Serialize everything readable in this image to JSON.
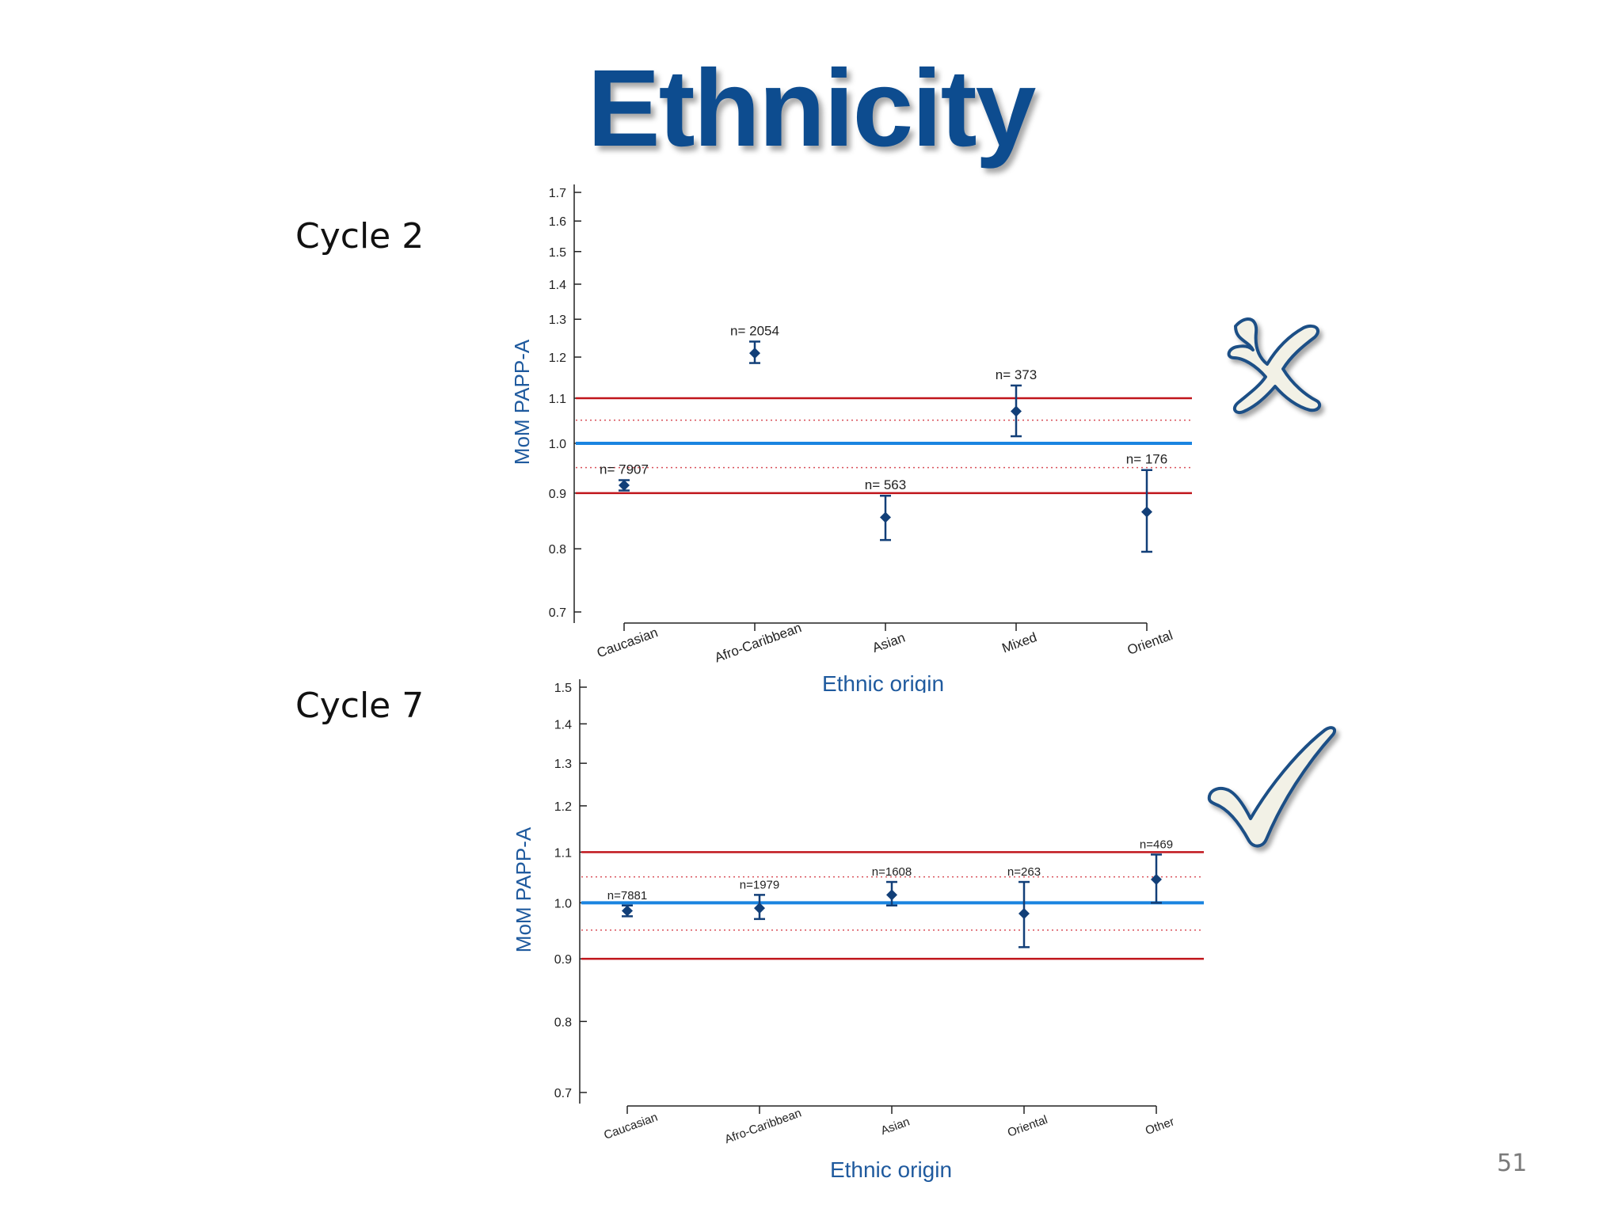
{
  "slide": {
    "title": "Ethnicity",
    "page_number": "51"
  },
  "labels": {
    "cycle_top": "Cycle 2",
    "cycle_bottom": "Cycle 7"
  },
  "marks": {
    "top": "cross-mark-icon",
    "bottom": "check-mark-icon"
  },
  "colors": {
    "title": "#0d4c8f",
    "points": "#123f78",
    "axis_text": "#1f5a9e",
    "center_line": "#1a84e0",
    "limit_line": "#c0151b",
    "dotted_line": "#d9505a",
    "mark_fill": "#f2f1e6",
    "mark_stroke": "#1f4f86"
  },
  "chart_data": [
    {
      "type": "scatter",
      "title": "",
      "xlabel": "Ethnic origin",
      "ylabel": "MoM PAPP-A",
      "ylim": [
        0.7,
        1.7
      ],
      "yscale": "log",
      "yticks": [
        "0.7",
        "0.8",
        "0.9",
        "1.0",
        "1.1",
        "1.2",
        "1.3",
        "1.4",
        "1.5",
        "1.6",
        "1.7"
      ],
      "categories": [
        "Caucasian",
        "Afro-Caribbean",
        "Asian",
        "Mixed",
        "Oriental"
      ],
      "points": [
        {
          "category": "Caucasian",
          "n_label": "n= 7907",
          "value": 0.915,
          "lower": 0.905,
          "upper": 0.925
        },
        {
          "category": "Afro-Caribbean",
          "n_label": "n= 2054",
          "value": 1.21,
          "lower": 1.185,
          "upper": 1.24
        },
        {
          "category": "Asian",
          "n_label": "n= 563",
          "value": 0.855,
          "lower": 0.815,
          "upper": 0.895
        },
        {
          "category": "Mixed",
          "n_label": "n= 373",
          "value": 1.07,
          "lower": 1.015,
          "upper": 1.13
        },
        {
          "category": "Oriental",
          "n_label": "n= 176",
          "value": 0.865,
          "lower": 0.795,
          "upper": 0.945
        }
      ],
      "reference_lines": {
        "center": 1.0,
        "solid_limits": [
          0.9,
          1.1
        ],
        "dotted_limits": [
          0.95,
          1.05
        ]
      }
    },
    {
      "type": "scatter",
      "title": "",
      "xlabel": "Ethnic origin",
      "ylabel": "MoM PAPP-A",
      "ylim": [
        0.7,
        1.5
      ],
      "yscale": "log",
      "yticks": [
        "0.7",
        "0.8",
        "0.9",
        "1.0",
        "1.1",
        "1.2",
        "1.3",
        "1.4",
        "1.5"
      ],
      "categories": [
        "Caucasian",
        "Afro-Caribbean",
        "Asian",
        "Oriental",
        "Other"
      ],
      "points": [
        {
          "category": "Caucasian",
          "n_label": "n=7881",
          "value": 0.985,
          "lower": 0.975,
          "upper": 0.995
        },
        {
          "category": "Afro-Caribbean",
          "n_label": "n=1979",
          "value": 0.99,
          "lower": 0.97,
          "upper": 1.015
        },
        {
          "category": "Asian",
          "n_label": "n=1608",
          "value": 1.015,
          "lower": 0.995,
          "upper": 1.04
        },
        {
          "category": "Oriental",
          "n_label": "n=263",
          "value": 0.98,
          "lower": 0.92,
          "upper": 1.04
        },
        {
          "category": "Other",
          "n_label": "n=469",
          "value": 1.045,
          "lower": 1.0,
          "upper": 1.095
        }
      ],
      "reference_lines": {
        "center": 1.0,
        "solid_limits": [
          0.9,
          1.1
        ],
        "dotted_limits": [
          0.95,
          1.05
        ]
      }
    }
  ]
}
